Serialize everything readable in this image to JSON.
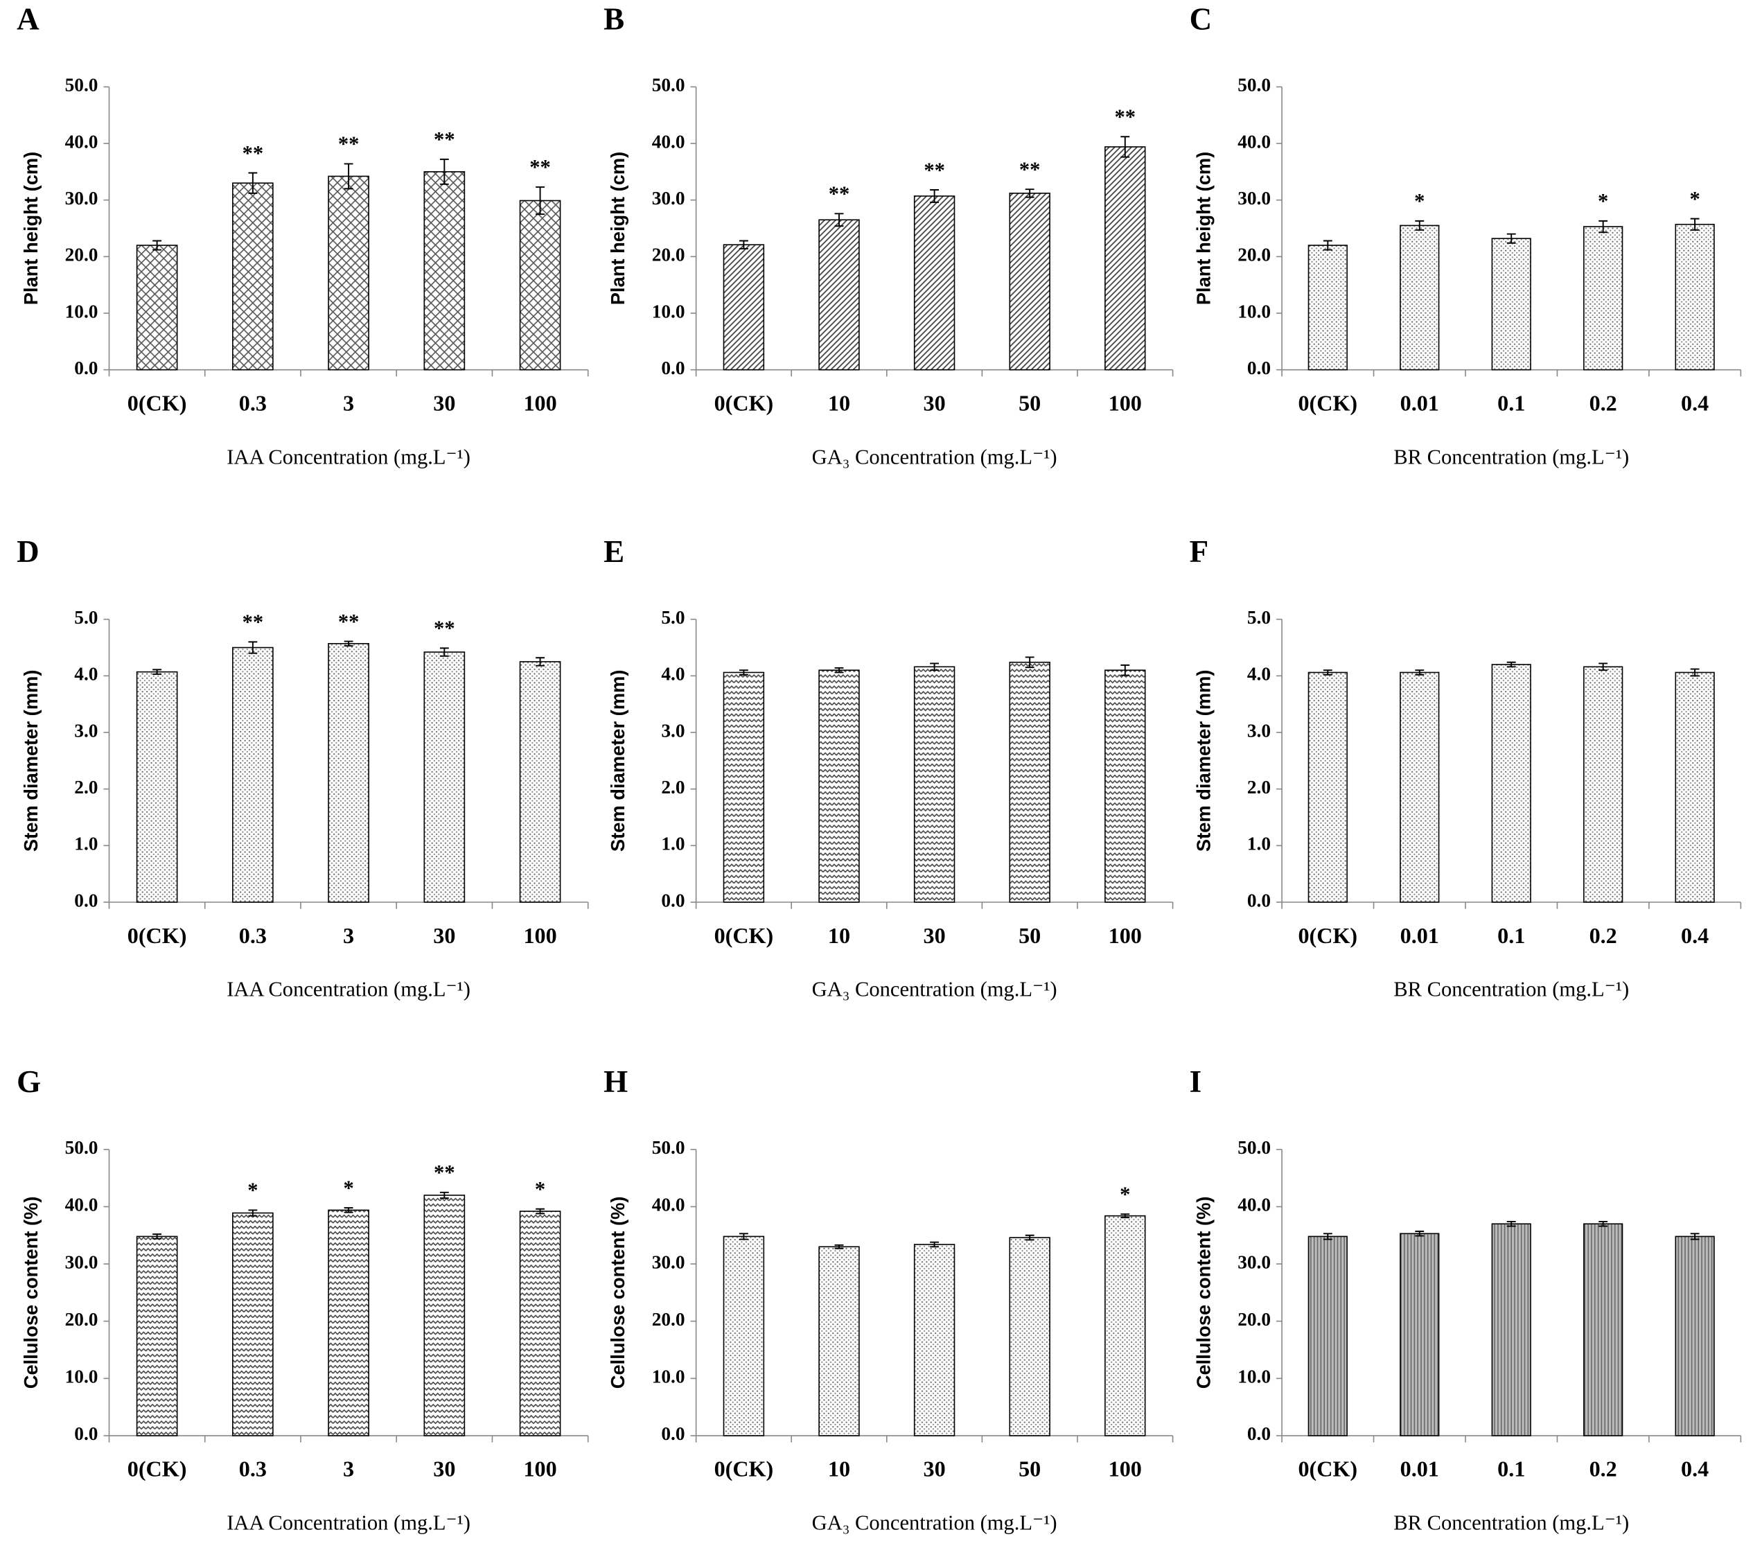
{
  "chart_data": [
    {
      "type": "bar",
      "panel": "A",
      "y_label": "Plant height (cm)",
      "x_label": "IAA Concentration (mg.L⁻¹)",
      "pattern": "crosshatch",
      "categories": [
        "0(CK)",
        "0.3",
        "3",
        "30",
        "100"
      ],
      "values": [
        22.0,
        33.0,
        34.2,
        35.0,
        29.9
      ],
      "errors": [
        0.8,
        1.8,
        2.2,
        2.2,
        2.4
      ],
      "annotations": [
        null,
        "**",
        "**",
        "**",
        "**"
      ],
      "ylim": [
        0,
        50
      ],
      "yticks": [
        {
          "value": 0,
          "label": "0.0"
        },
        {
          "value": 10,
          "label": "10.0"
        },
        {
          "value": 20,
          "label": "20.0"
        },
        {
          "value": 30,
          "label": "30.0"
        },
        {
          "value": 40,
          "label": "40.0"
        },
        {
          "value": 50,
          "label": "50.0"
        }
      ]
    },
    {
      "type": "bar",
      "panel": "B",
      "y_label": "Plant height (cm)",
      "x_label": "GA₃ Concentration (mg.L⁻¹)",
      "pattern": "diagonal",
      "categories": [
        "0(CK)",
        "10",
        "30",
        "50",
        "100"
      ],
      "values": [
        22.1,
        26.5,
        30.7,
        31.2,
        39.4
      ],
      "errors": [
        0.7,
        1.1,
        1.1,
        0.7,
        1.8
      ],
      "annotations": [
        null,
        "**",
        "**",
        "**",
        "**"
      ],
      "ylim": [
        0,
        50
      ],
      "yticks": [
        {
          "value": 0,
          "label": "0.0"
        },
        {
          "value": 10,
          "label": "10.0"
        },
        {
          "value": 20,
          "label": "20.0"
        },
        {
          "value": 30,
          "label": "30.0"
        },
        {
          "value": 40,
          "label": "40.0"
        },
        {
          "value": 50,
          "label": "50.0"
        }
      ]
    },
    {
      "type": "bar",
      "panel": "C",
      "y_label": "Plant height (cm)",
      "x_label": "BR Concentration (mg.L⁻¹)",
      "pattern": "dots",
      "categories": [
        "0(CK)",
        "0.01",
        "0.1",
        "0.2",
        "0.4"
      ],
      "values": [
        22.0,
        25.5,
        23.2,
        25.3,
        25.7
      ],
      "errors": [
        0.8,
        0.8,
        0.8,
        1.0,
        1.0
      ],
      "annotations": [
        null,
        "*",
        null,
        "*",
        "*"
      ],
      "ylim": [
        0,
        50
      ],
      "yticks": [
        {
          "value": 0,
          "label": "0.0"
        },
        {
          "value": 10,
          "label": "10.0"
        },
        {
          "value": 20,
          "label": "20.0"
        },
        {
          "value": 30,
          "label": "30.0"
        },
        {
          "value": 40,
          "label": "40.0"
        },
        {
          "value": 50,
          "label": "50.0"
        }
      ]
    },
    {
      "type": "bar",
      "panel": "D",
      "y_label": "Stem diameter (mm)",
      "x_label": "IAA Concentration (mg.L⁻¹)",
      "pattern": "dots",
      "categories": [
        "0(CK)",
        "0.3",
        "3",
        "30",
        "100"
      ],
      "values": [
        4.07,
        4.5,
        4.57,
        4.42,
        4.25
      ],
      "errors": [
        0.04,
        0.1,
        0.04,
        0.07,
        0.07
      ],
      "annotations": [
        null,
        "**",
        "**",
        "**",
        null
      ],
      "ylim": [
        0,
        5
      ],
      "yticks": [
        {
          "value": 0,
          "label": "0.0"
        },
        {
          "value": 1,
          "label": "1.0"
        },
        {
          "value": 2,
          "label": "2.0"
        },
        {
          "value": 3,
          "label": "3.0"
        },
        {
          "value": 4,
          "label": "4.0"
        },
        {
          "value": 5,
          "label": "5.0"
        }
      ]
    },
    {
      "type": "bar",
      "panel": "E",
      "y_label": "Stem diameter (mm)",
      "x_label": "GA₃ Concentration (mg.L⁻¹)",
      "pattern": "wave",
      "categories": [
        "0(CK)",
        "10",
        "30",
        "50",
        "100"
      ],
      "values": [
        4.06,
        4.1,
        4.16,
        4.24,
        4.1
      ],
      "errors": [
        0.04,
        0.04,
        0.06,
        0.09,
        0.09
      ],
      "annotations": [
        null,
        null,
        null,
        null,
        null
      ],
      "ylim": [
        0,
        5
      ],
      "yticks": [
        {
          "value": 0,
          "label": "0.0"
        },
        {
          "value": 1,
          "label": "1.0"
        },
        {
          "value": 2,
          "label": "2.0"
        },
        {
          "value": 3,
          "label": "3.0"
        },
        {
          "value": 4,
          "label": "4.0"
        },
        {
          "value": 5,
          "label": "5.0"
        }
      ]
    },
    {
      "type": "bar",
      "panel": "F",
      "y_label": "Stem diameter (mm)",
      "x_label": "BR Concentration (mg.L⁻¹)",
      "pattern": "dots",
      "categories": [
        "0(CK)",
        "0.01",
        "0.1",
        "0.2",
        "0.4"
      ],
      "values": [
        4.06,
        4.06,
        4.2,
        4.16,
        4.06
      ],
      "errors": [
        0.04,
        0.04,
        0.04,
        0.06,
        0.06
      ],
      "annotations": [
        null,
        null,
        null,
        null,
        null
      ],
      "ylim": [
        0,
        5
      ],
      "yticks": [
        {
          "value": 0,
          "label": "0.0"
        },
        {
          "value": 1,
          "label": "1.0"
        },
        {
          "value": 2,
          "label": "2.0"
        },
        {
          "value": 3,
          "label": "3.0"
        },
        {
          "value": 4,
          "label": "4.0"
        },
        {
          "value": 5,
          "label": "5.0"
        }
      ]
    },
    {
      "type": "bar",
      "panel": "G",
      "y_label": "Cellulose content (%)",
      "x_label": "IAA Concentration (mg.L⁻¹)",
      "pattern": "wave",
      "categories": [
        "0(CK)",
        "0.3",
        "3",
        "30",
        "100"
      ],
      "values": [
        34.8,
        38.9,
        39.4,
        42.0,
        39.2
      ],
      "errors": [
        0.4,
        0.5,
        0.4,
        0.5,
        0.4
      ],
      "annotations": [
        null,
        "*",
        "*",
        "**",
        "*"
      ],
      "ylim": [
        0,
        50
      ],
      "yticks": [
        {
          "value": 0,
          "label": "0.0"
        },
        {
          "value": 10,
          "label": "10.0"
        },
        {
          "value": 20,
          "label": "20.0"
        },
        {
          "value": 30,
          "label": "30.0"
        },
        {
          "value": 40,
          "label": "40.0"
        },
        {
          "value": 50,
          "label": "50.0"
        }
      ]
    },
    {
      "type": "bar",
      "panel": "H",
      "y_label": "Cellulose content (%)",
      "x_label": "GA₃ Concentration (mg.L⁻¹)",
      "pattern": "dots",
      "categories": [
        "0(CK)",
        "10",
        "30",
        "50",
        "100"
      ],
      "values": [
        34.8,
        33.0,
        33.4,
        34.6,
        38.4
      ],
      "errors": [
        0.5,
        0.3,
        0.4,
        0.4,
        0.3
      ],
      "annotations": [
        null,
        null,
        null,
        null,
        "*"
      ],
      "ylim": [
        0,
        50
      ],
      "yticks": [
        {
          "value": 0,
          "label": "0.0"
        },
        {
          "value": 10,
          "label": "10.0"
        },
        {
          "value": 20,
          "label": "20.0"
        },
        {
          "value": 30,
          "label": "30.0"
        },
        {
          "value": 40,
          "label": "40.0"
        },
        {
          "value": 50,
          "label": "50.0"
        }
      ]
    },
    {
      "type": "bar",
      "panel": "I",
      "y_label": "Cellulose content (%)",
      "x_label": "BR Concentration (mg.L⁻¹)",
      "pattern": "vertical",
      "categories": [
        "0(CK)",
        "0.01",
        "0.1",
        "0.2",
        "0.4"
      ],
      "values": [
        34.8,
        35.3,
        37.0,
        37.0,
        34.8
      ],
      "errors": [
        0.5,
        0.4,
        0.4,
        0.4,
        0.5
      ],
      "annotations": [
        null,
        null,
        null,
        null,
        null
      ],
      "ylim": [
        0,
        50
      ],
      "yticks": [
        {
          "value": 0,
          "label": "0.0"
        },
        {
          "value": 10,
          "label": "10.0"
        },
        {
          "value": 20,
          "label": "20.0"
        },
        {
          "value": 30,
          "label": "30.0"
        },
        {
          "value": 40,
          "label": "40.0"
        },
        {
          "value": 50,
          "label": "50.0"
        }
      ]
    }
  ]
}
